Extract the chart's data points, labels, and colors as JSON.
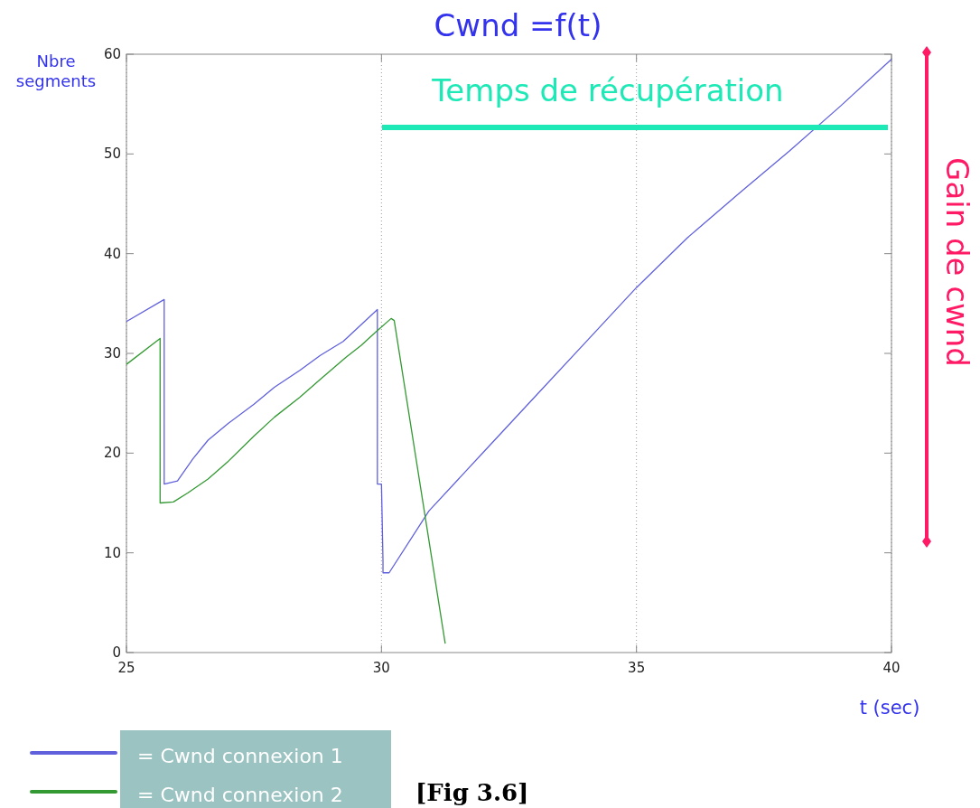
{
  "chart_data": {
    "type": "line",
    "title": "Cwnd =f(t)",
    "ylabel": "Nbre segments",
    "xlabel": "t (sec)",
    "xlim": [
      25,
      40
    ],
    "xticks": [
      25,
      30,
      35,
      40
    ],
    "ylim": [
      0,
      60
    ],
    "yticks": [
      0,
      10,
      20,
      30,
      40,
      50,
      60
    ],
    "grid": "x",
    "legend": "bottom left",
    "line_style": "solid",
    "series": [
      {
        "name": "= Cwnd connexion 1",
        "color": "#6060dd",
        "x": [
          25,
          25.74,
          25.74,
          26.0,
          26.3,
          26.6,
          27.0,
          27.5,
          27.9,
          28.4,
          28.8,
          29.25,
          29.92,
          29.92,
          30.0,
          30.03,
          30.03,
          30.15,
          30.93,
          32,
          33,
          34,
          35,
          36,
          37,
          38,
          39,
          40
        ],
        "values": [
          33.2,
          35.4,
          16.9,
          17.2,
          19.4,
          21.3,
          23.0,
          24.9,
          26.6,
          28.3,
          29.8,
          31.2,
          34.4,
          16.9,
          16.9,
          9.2,
          8.0,
          8.0,
          14.2,
          20.1,
          25.6,
          31.1,
          36.6,
          41.6,
          46.0,
          50.3,
          54.8,
          59.5
        ]
      },
      {
        "name": "= Cwnd connexion 2",
        "color": "#339933",
        "x": [
          25,
          25.66,
          25.66,
          25.92,
          26.2,
          26.6,
          27.0,
          27.5,
          27.9,
          28.4,
          28.8,
          29.3,
          29.6,
          29.9,
          30.19,
          30.25,
          31.25
        ],
        "values": [
          28.9,
          31.5,
          15.0,
          15.1,
          16.0,
          17.4,
          19.2,
          21.7,
          23.6,
          25.6,
          27.4,
          29.6,
          30.8,
          32.2,
          33.5,
          33.3,
          0.9
        ]
      }
    ],
    "annotations": [
      "Temps de récupération",
      "Gain de cwnd",
      "[Fig 3.6]"
    ]
  }
}
